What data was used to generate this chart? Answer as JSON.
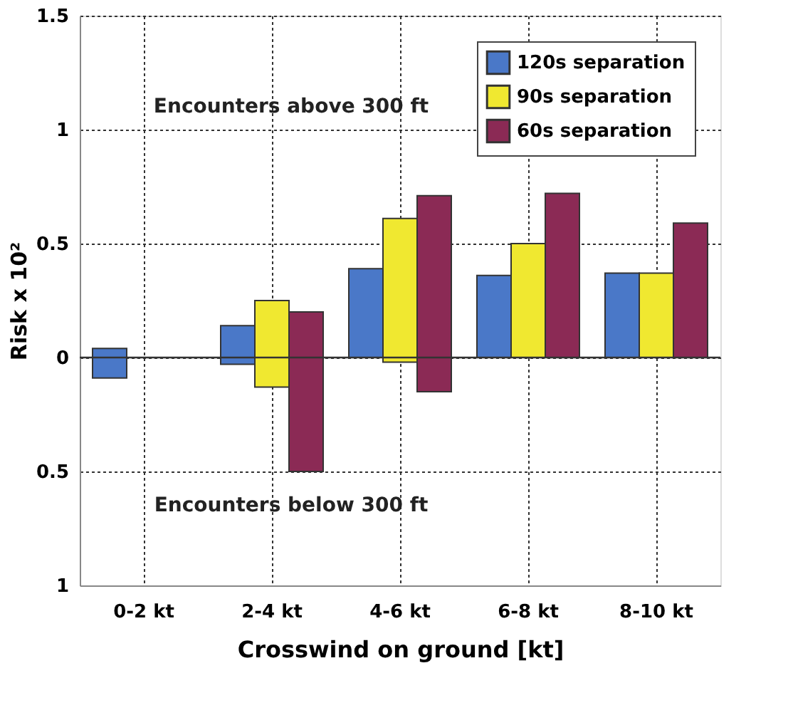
{
  "chart_data": {
    "type": "bar",
    "xlabel": "Crosswind on ground [kt]",
    "ylabel": "Risk x 10²",
    "categories": [
      "0-2 kt",
      "2-4 kt",
      "4-6 kt",
      "6-8 kt",
      "8-10 kt"
    ],
    "series": [
      {
        "name": "120s separation",
        "color": "#4a78c8",
        "values": [
          0.13,
          0.17,
          0.39,
          0.36,
          0.37
        ],
        "base": [
          -0.09,
          -0.03,
          0,
          0,
          0
        ]
      },
      {
        "name": "90s separation",
        "color": "#f0e830",
        "values": [
          null,
          0.38,
          0.63,
          0.5,
          0.37
        ],
        "base": [
          null,
          -0.13,
          -0.02,
          0,
          0
        ]
      },
      {
        "name": "60s separation",
        "color": "#8b2a55",
        "values": [
          null,
          0.7,
          0.86,
          0.72,
          0.59
        ],
        "base": [
          null,
          -0.5,
          -0.15,
          0,
          0
        ]
      }
    ],
    "ylim": [
      -1,
      1.5
    ],
    "yticks": [
      {
        "value": -1,
        "label": "1"
      },
      {
        "value": -0.5,
        "label": "0.5"
      },
      0,
      0.5,
      1,
      1.5
    ],
    "ref_lines": [
      {
        "axis": "y",
        "value": 0
      }
    ],
    "annotations": [
      "Encounters above 300 ft",
      "Encounters below 300 ft"
    ],
    "grid": true,
    "legend": "top right"
  }
}
